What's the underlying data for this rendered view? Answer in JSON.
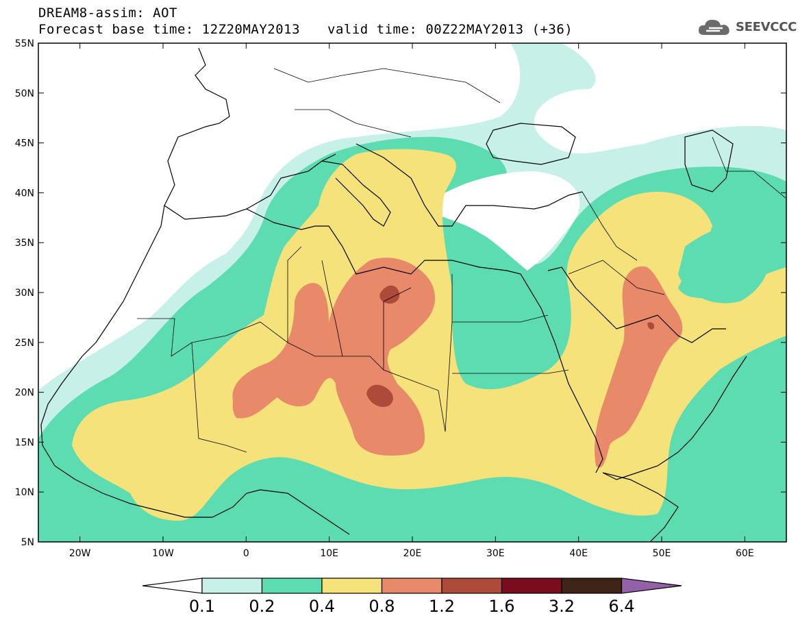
{
  "header": {
    "line1": "DREAM8-assim: AOT",
    "base": "Forecast base time: 12Z20MAY2013",
    "valid": "valid time: 00Z22MAY2013 (+36)",
    "logo_text": "SEEVCCC",
    "logo_icon": "cloud-icon"
  },
  "map": {
    "lon_range": [
      -25,
      65
    ],
    "lat_range": [
      5,
      55
    ],
    "lon_ticks": [
      "20W",
      "10W",
      "0",
      "10E",
      "20E",
      "30E",
      "40E",
      "50E",
      "60E"
    ],
    "lat_ticks": [
      "55N",
      "50N",
      "45N",
      "40N",
      "35N",
      "30N",
      "25N",
      "20N",
      "15N",
      "10N",
      "5N"
    ]
  },
  "colorbar": {
    "labels": [
      "0.1",
      "0.2",
      "0.4",
      "0.8",
      "1.2",
      "1.6",
      "3.2",
      "6.4"
    ],
    "colors": [
      "#ffffff",
      "#c6f0e8",
      "#5cdcb0",
      "#f6e27a",
      "#e8896a",
      "#ad4a3a",
      "#7a0c1e",
      "#3d2416",
      "#9460a8"
    ]
  }
}
